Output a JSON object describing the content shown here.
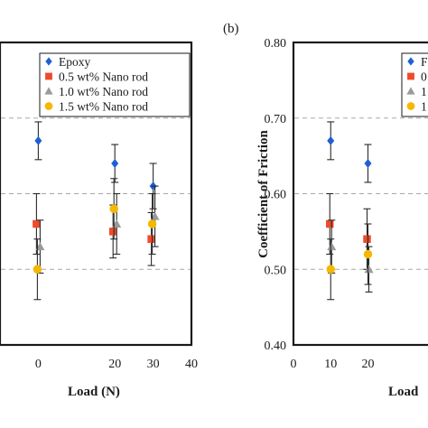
{
  "chart_data": [
    {
      "panel": "",
      "type": "scatter",
      "title": "",
      "xlabel": "Load (N)",
      "ylabel": "",
      "xlim": [
        -10,
        40
      ],
      "ylim": [
        0.4,
        0.8
      ],
      "x_ticks": [
        "0",
        "20",
        "30",
        "40"
      ],
      "y_ticks": [],
      "grid": "horizontal dashed",
      "legend_position": "top-right",
      "x": [
        0,
        20,
        30
      ],
      "series": [
        {
          "name": "Epoxy",
          "marker": "diamond",
          "color": "#1f5fd6",
          "values": [
            0.67,
            0.64,
            0.61
          ],
          "err": [
            0.025,
            0.025,
            0.03
          ]
        },
        {
          "name": "0.5 wt% Nano rod",
          "marker": "square",
          "color": "#ee4b2b",
          "values": [
            0.56,
            0.55,
            0.54
          ],
          "err": [
            0.04,
            0.035,
            0.035
          ]
        },
        {
          "name": "1.0 wt% Nano rod",
          "marker": "triangle",
          "color": "#9a9a9a",
          "values": [
            0.53,
            0.56,
            0.57
          ],
          "err": [
            0.035,
            0.04,
            0.04
          ]
        },
        {
          "name": "1.5 wt% Nano rod",
          "marker": "circle",
          "color": "#f5b800",
          "values": [
            0.5,
            0.58,
            0.56
          ],
          "err": [
            0.04,
            0.04,
            0.04
          ]
        }
      ]
    },
    {
      "panel": "(b)",
      "type": "scatter",
      "title": "",
      "xlabel": "Load",
      "ylabel": "Coefficient of Friction",
      "xlim": [
        0,
        40
      ],
      "ylim": [
        0.4,
        0.8
      ],
      "x_ticks": [
        "0",
        "10",
        "20"
      ],
      "y_ticks": [
        "0.40",
        "0.50",
        "0.60",
        "0.70",
        "0.80"
      ],
      "grid": "horizontal dashed",
      "legend_position": "top-right",
      "x": [
        10,
        20
      ],
      "series": [
        {
          "name": "",
          "marker": "diamond",
          "color": "#1f5fd6",
          "values": [
            0.67,
            0.64
          ],
          "err": [
            0.025,
            0.025
          ]
        },
        {
          "name": "",
          "marker": "square",
          "color": "#ee4b2b",
          "values": [
            0.56,
            0.54
          ],
          "err": [
            0.04,
            0.04
          ]
        },
        {
          "name": "",
          "marker": "triangle",
          "color": "#9a9a9a",
          "values": [
            0.53,
            0.5
          ],
          "err": [
            0.035,
            0.03
          ]
        },
        {
          "name": "",
          "marker": "circle",
          "color": "#f5b800",
          "values": [
            0.5,
            0.52
          ],
          "err": [
            0.04,
            0.04
          ]
        }
      ],
      "legend_glyphs": [
        "F",
        "0",
        "1",
        "1"
      ]
    }
  ]
}
